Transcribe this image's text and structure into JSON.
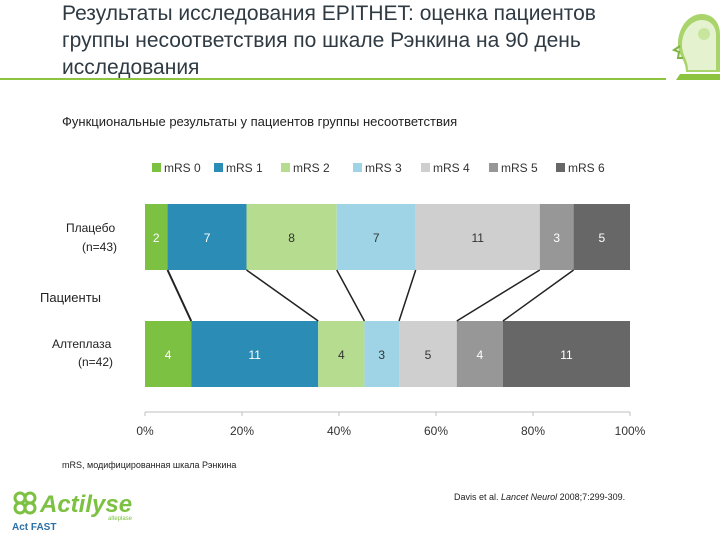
{
  "slide": {
    "title": "Результаты исследования EPITHET: оценка пациентов группы несоответствия по шкале Рэнкина на 90 день исследования",
    "subtitle": "Функциональные результаты у пациентов группы несоответствия",
    "footnote": "mRS, модифицированная шкала Рэнкина",
    "citation_authors": "Davis et al.",
    "citation_journal": "Lancet Neurol",
    "citation_details": "2008;7:299-309.",
    "brand_name": "Actilyse",
    "brand_sub": "alteplase",
    "brand_tagline": "Act FAST",
    "accent_color": "#8cc43f"
  },
  "chart_data": {
    "type": "bar",
    "orientation": "horizontal-stacked-100",
    "categories": [
      "mRS 0",
      "mRS 1",
      "mRS 2",
      "mRS 3",
      "mRS 4",
      "mRS 5",
      "mRS 6"
    ],
    "colors": [
      "#7cc142",
      "#2b8cb5",
      "#b5dc8f",
      "#9fd4e6",
      "#cfcfcf",
      "#979797",
      "#676767"
    ],
    "bars": [
      {
        "label": "Плацебо",
        "n": "(n=43)",
        "values": [
          2,
          7,
          8,
          7,
          11,
          3,
          5
        ]
      },
      {
        "label": "Алтеплаза",
        "n": "(n=42)",
        "values": [
          4,
          11,
          4,
          3,
          5,
          4,
          11
        ]
      }
    ],
    "group_label": "Пациенты",
    "x_ticks": [
      "0%",
      "20%",
      "40%",
      "60%",
      "80%",
      "100%"
    ],
    "xlim": [
      0,
      100
    ],
    "legend_position": "top"
  }
}
